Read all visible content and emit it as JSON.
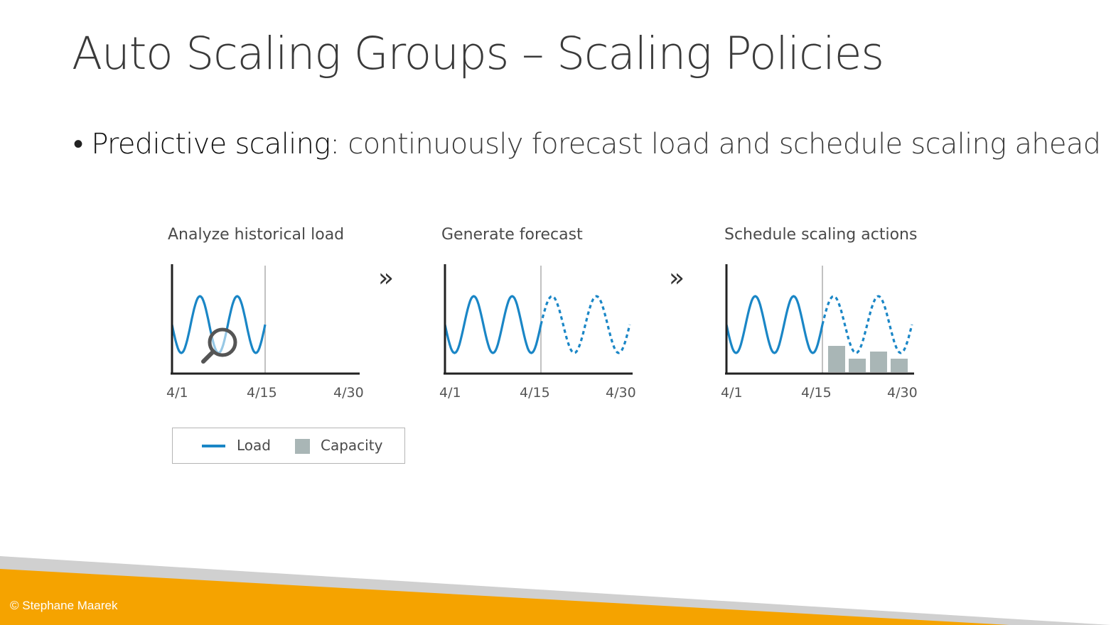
{
  "slide": {
    "title": "Auto Scaling Groups – Scaling Policies",
    "bullet": {
      "term": "Predictive scaling:",
      "description": " continuously forecast load and schedule scaling ahead"
    },
    "copyright": "© Stephane Maarek"
  },
  "diagram": {
    "separator_glyph": "»",
    "panels": [
      {
        "title": "Analyze historical load",
        "ticks": [
          "4/1",
          "4/15",
          "4/30"
        ],
        "icon": "magnifier-icon"
      },
      {
        "title": "Generate forecast",
        "ticks": [
          "4/1",
          "4/15",
          "4/30"
        ]
      },
      {
        "title": "Schedule scaling actions",
        "ticks": [
          "4/1",
          "4/15",
          "4/30"
        ]
      }
    ],
    "legend": {
      "load_label": "Load",
      "capacity_label": "Capacity"
    },
    "colors": {
      "load": "#1a86c6",
      "capacity": "#a9b6b6",
      "axis": "#222222",
      "accent_orange": "#f5a300",
      "footer_gray": "#d0d0d0"
    }
  }
}
